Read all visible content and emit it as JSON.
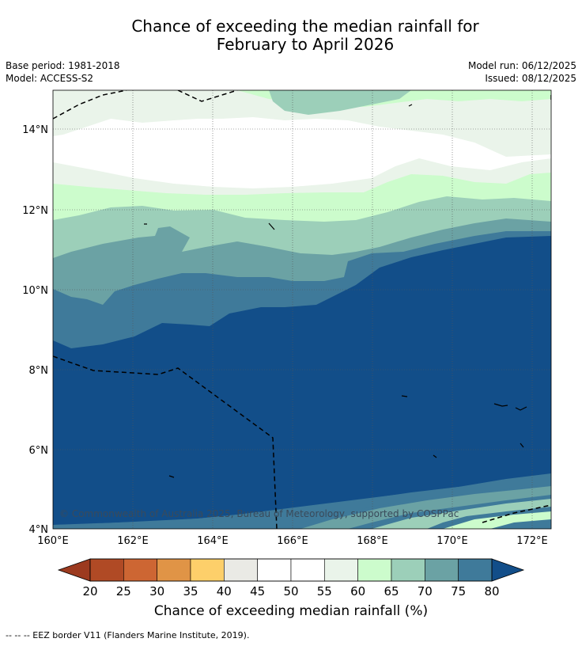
{
  "title_line1": "Chance of exceeding the median rainfall for",
  "title_line2": "February to April 2026",
  "meta": {
    "base_period": "Base period: 1981-2018",
    "model": "Model: ACCESS-S2",
    "model_run": "Model run: 06/12/2025",
    "issued": "Issued: 08/12/2025"
  },
  "map": {
    "lat_labels": [
      "14°N",
      "12°N",
      "10°N",
      "8°N",
      "6°N",
      "4°N"
    ],
    "lon_labels": [
      "160°E",
      "162°E",
      "164°E",
      "166°E",
      "168°E",
      "170°E",
      "172°E"
    ],
    "copyright": "© Commonwealth of Australia 2025, Bureau of Meteorology, supported by COSPPac"
  },
  "colorbar": {
    "title": "Chance of exceeding median rainfall (%)",
    "ticks": [
      "20",
      "25",
      "30",
      "35",
      "40",
      "45",
      "50",
      "55",
      "60",
      "65",
      "70",
      "75",
      "80"
    ],
    "low_extend_color": "#9c3a1f",
    "high_extend_color": "#124e89",
    "colors": [
      "#b04a25",
      "#cd6633",
      "#e09446",
      "#fdcf6a",
      "#eaeae5",
      "#ffffff",
      "#ffffff",
      "#eaf4ea",
      "#ccfccc",
      "#9ccfb9",
      "#6ba2a4",
      "#3f7a9a"
    ]
  },
  "footer": "--  --  -- EEZ border V11 (Flanders Marine Institute, 2019)."
}
